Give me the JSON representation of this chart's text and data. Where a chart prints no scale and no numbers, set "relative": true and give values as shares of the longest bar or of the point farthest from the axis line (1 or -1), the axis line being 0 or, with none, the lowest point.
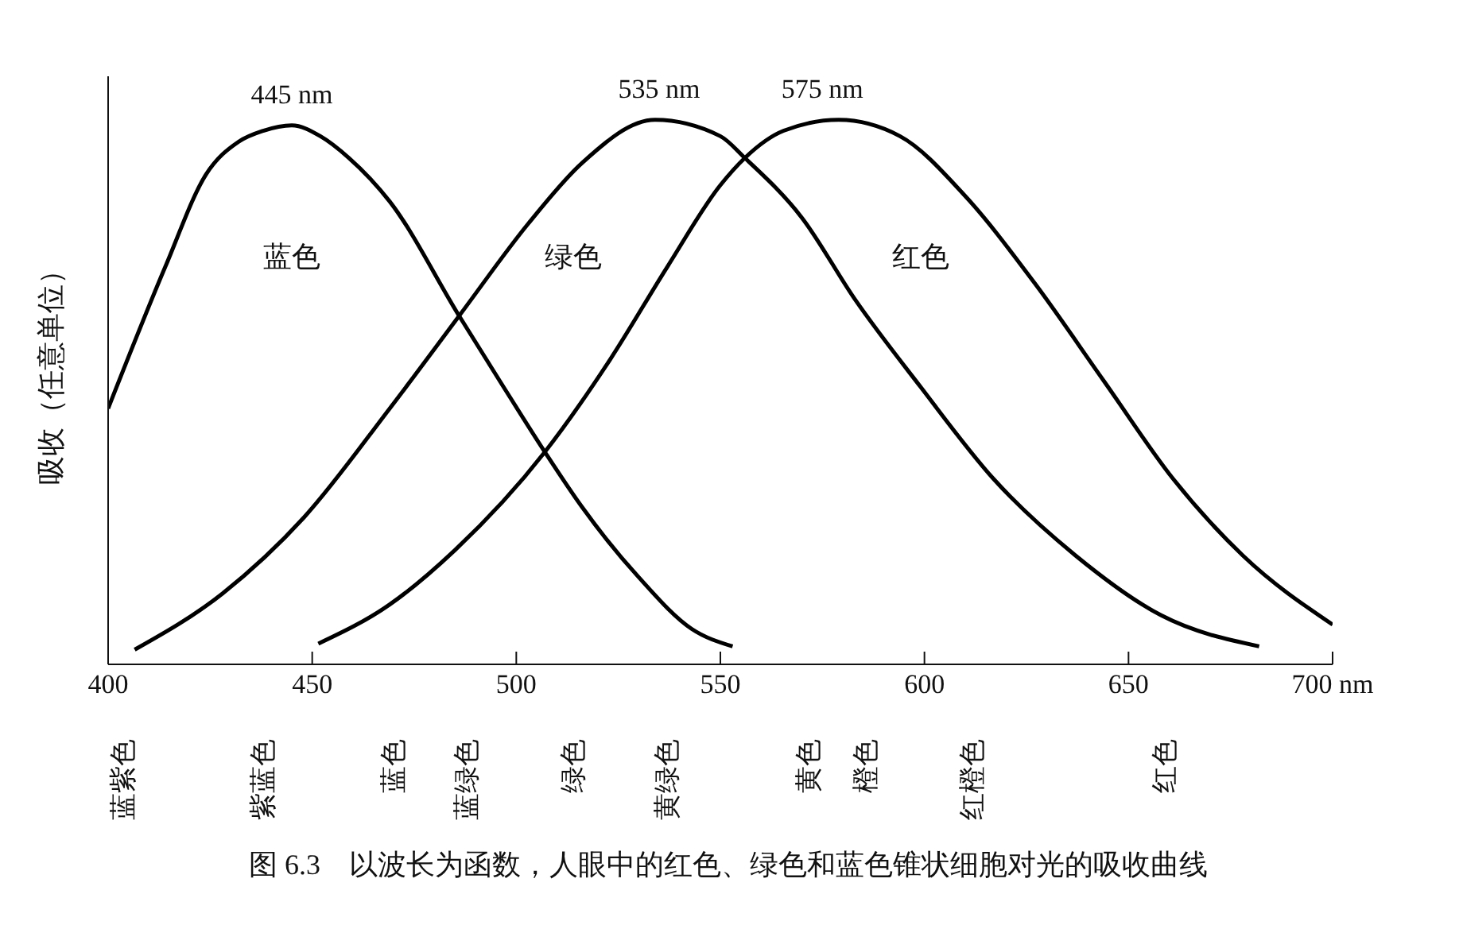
{
  "chart_data": {
    "type": "line",
    "relative": true,
    "ylabel": "吸收（任意单位）",
    "xlim": [
      400,
      700
    ],
    "xticks": [
      400,
      450,
      500,
      550,
      600,
      650,
      {
        "value": 700,
        "label": "700 nm"
      }
    ],
    "grid": false,
    "legend": false,
    "marker": "none",
    "line_style": "solid",
    "series": [
      {
        "name": "蓝色",
        "color": "#000000",
        "x": [
          400,
          414,
          424,
          432,
          438,
          445,
          452,
          459,
          469,
          486,
          496,
          507,
          516,
          530,
          543,
          553
        ],
        "values": [
          0.47,
          0.73,
          0.9,
          0.96,
          0.98,
          0.99,
          0.97,
          0.93,
          0.85,
          0.64,
          0.52,
          0.39,
          0.29,
          0.16,
          0.065,
          0.033
        ]
      },
      {
        "name": "绿色",
        "color": "#000000",
        "x": [
          406.5,
          428,
          448,
          469,
          486,
          503,
          516,
          534,
          550,
          556,
          570,
          583,
          599,
          617,
          637,
          658,
          682
        ],
        "values": [
          0.027,
          0.13,
          0.27,
          0.47,
          0.64,
          0.81,
          0.92,
          1.0,
          0.97,
          0.93,
          0.82,
          0.67,
          0.51,
          0.34,
          0.2,
          0.09,
          0.033
        ]
      },
      {
        "name": "红色",
        "color": "#000000",
        "x": [
          451.5,
          469,
          485,
          507,
          523,
          537,
          550,
          556,
          565.5,
          579,
          594,
          610,
          627,
          644,
          661,
          678,
          700
        ],
        "values": [
          0.038,
          0.11,
          0.21,
          0.39,
          0.56,
          0.73,
          0.88,
          0.93,
          0.98,
          1.0,
          0.97,
          0.86,
          0.7,
          0.52,
          0.34,
          0.2,
          0.073
        ]
      }
    ],
    "annotations": [
      {
        "text": "445 nm",
        "x": 445,
        "y": 0.99
      },
      {
        "text": "535 nm",
        "x": 535,
        "y": 1.0
      },
      {
        "text": "575 nm",
        "x": 575,
        "y": 1.0
      },
      "蓝紫色",
      "紫蓝色",
      "蓝色",
      "蓝绿色",
      "绿色",
      "黄绿色",
      "黄色",
      "橙色",
      "红橙色",
      "红色",
      "图 6.3　以波长为函数，人眼中的红色、绿色和蓝色锥状细胞对光的吸收曲线"
    ]
  }
}
